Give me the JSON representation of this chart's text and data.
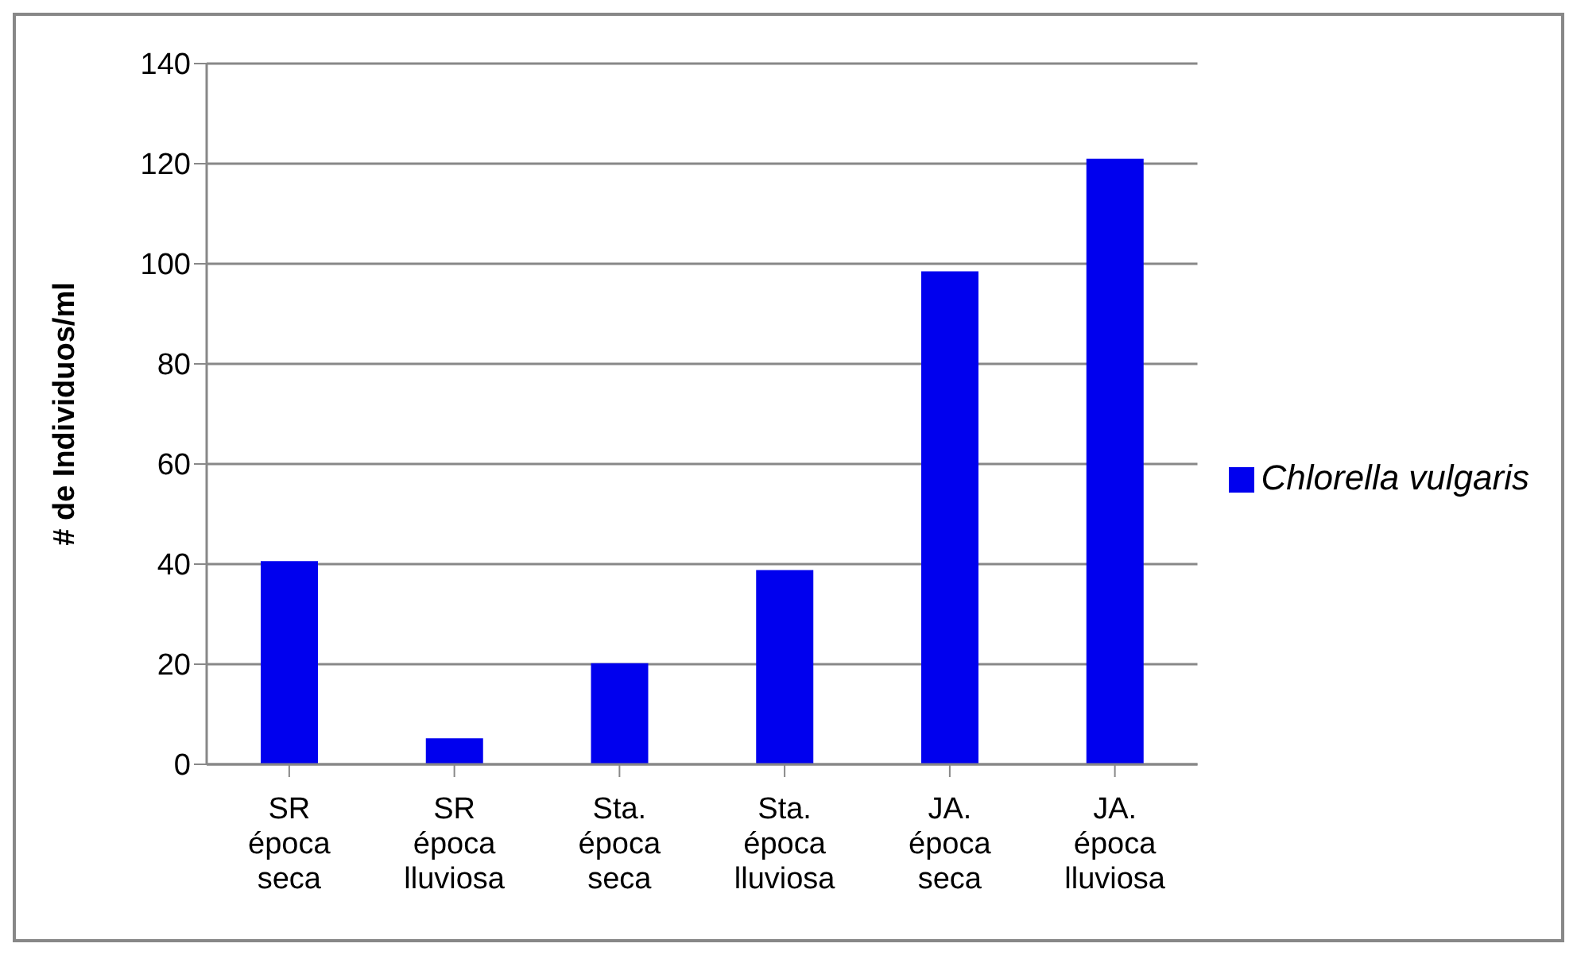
{
  "chart_data": {
    "type": "bar",
    "ylabel": "# de Individuos/ml",
    "categories": [
      "SR época seca",
      "SR época lluviosa",
      "Sta. época seca",
      "Sta. época lluviosa",
      "JA. época seca",
      "JA. época lluviosa"
    ],
    "series": [
      {
        "name": "Chlorella vulgaris",
        "color": "#0000ee",
        "values": [
          40.6,
          5.2,
          20.2,
          38.8,
          98.5,
          121
        ]
      }
    ],
    "ylim": [
      0,
      140
    ],
    "yticks": [
      0,
      20,
      40,
      60,
      80,
      100,
      120,
      140
    ],
    "grid": "y",
    "legend": "right"
  }
}
